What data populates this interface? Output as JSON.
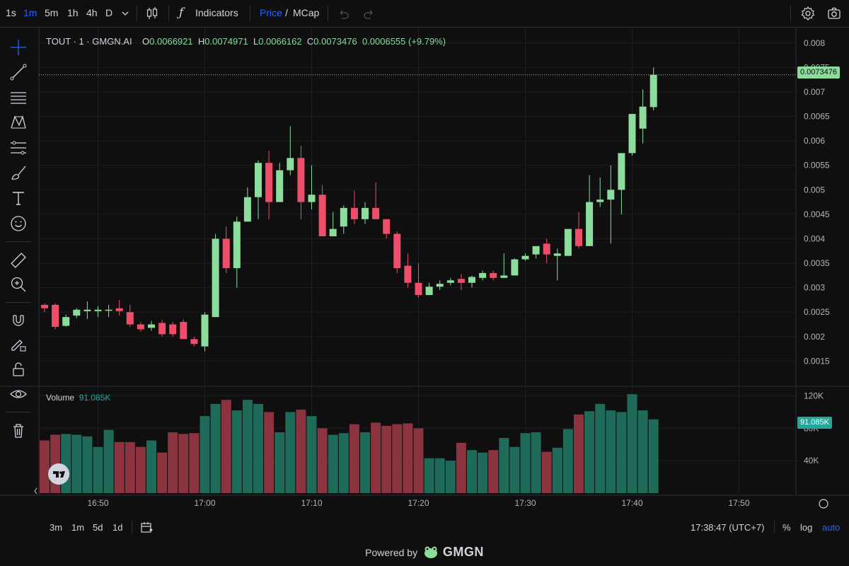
{
  "toolbar": {
    "timeframes": [
      "1s",
      "1m",
      "5m",
      "1h",
      "4h",
      "D"
    ],
    "active_timeframe": "1m",
    "indicators_label": "Indicators",
    "price_label": "Price",
    "slash": "/",
    "mcap_label": "MCap"
  },
  "legend": {
    "symbol": "TOUT · 1 · GMGN.AI",
    "o_label": "O",
    "o_value": "0.0066921",
    "h_label": "H",
    "h_value": "0.0074971",
    "l_label": "L",
    "l_value": "0.0066162",
    "c_label": "C",
    "c_value": "0.0073476",
    "change": "0.0006555 (+9.79%)"
  },
  "volume_legend": {
    "label": "Volume",
    "value": "91.085K"
  },
  "last_price_tag": "0.0073476",
  "volume_tag": "91.085K",
  "bottom_bar": {
    "ranges": [
      "3m",
      "1m",
      "5d",
      "1d"
    ],
    "clock": "17:38:47 (UTC+7)",
    "percent": "%",
    "log": "log",
    "auto": "auto"
  },
  "powered_by": {
    "text": "Powered by",
    "brand": "GMGN"
  },
  "colors": {
    "up": "#8cdc9c",
    "down": "#ef4e6a",
    "vol_up": "#1e6b5a",
    "vol_down": "#8c3340",
    "accent": "#2962ff",
    "tag_green": "#26a69a"
  },
  "chart_data": {
    "type": "candlestick",
    "title": "TOUT · 1 · GMGN.AI",
    "x_tick_labels": [
      "16:50",
      "17:00",
      "17:10",
      "17:20",
      "17:30",
      "17:40",
      "17:50"
    ],
    "y_tick_labels": [
      "0.0015",
      "0.002",
      "0.0025",
      "0.003",
      "0.0035",
      "0.004",
      "0.0045",
      "0.005",
      "0.0055",
      "0.006",
      "0.0065",
      "0.007",
      "0.0075",
      "0.008"
    ],
    "ylim": [
      0.001,
      0.0083
    ],
    "volume_tick_labels": [
      "40K",
      "80K",
      "120K"
    ],
    "volume_ylim": [
      0,
      130
    ],
    "candles": [
      {
        "t": "16:45",
        "o": 0.00265,
        "h": 0.00268,
        "l": 0.0025,
        "c": 0.00258,
        "v": 65
      },
      {
        "t": "16:46",
        "o": 0.00265,
        "h": 0.00268,
        "l": 0.00215,
        "c": 0.0022,
        "v": 72
      },
      {
        "t": "16:47",
        "o": 0.00222,
        "h": 0.00245,
        "l": 0.0022,
        "c": 0.0024,
        "v": 73
      },
      {
        "t": "16:48",
        "o": 0.00243,
        "h": 0.00258,
        "l": 0.00238,
        "c": 0.00255,
        "v": 72
      },
      {
        "t": "16:49",
        "o": 0.00252,
        "h": 0.00272,
        "l": 0.00236,
        "c": 0.00255,
        "v": 70
      },
      {
        "t": "16:50",
        "o": 0.00252,
        "h": 0.00262,
        "l": 0.0024,
        "c": 0.00255,
        "v": 57
      },
      {
        "t": "16:51",
        "o": 0.00254,
        "h": 0.00265,
        "l": 0.0024,
        "c": 0.00255,
        "v": 78
      },
      {
        "t": "16:52",
        "o": 0.00258,
        "h": 0.00275,
        "l": 0.00243,
        "c": 0.00252,
        "v": 63
      },
      {
        "t": "16:53",
        "o": 0.0025,
        "h": 0.00265,
        "l": 0.0022,
        "c": 0.00225,
        "v": 63
      },
      {
        "t": "16:54",
        "o": 0.00225,
        "h": 0.0023,
        "l": 0.0021,
        "c": 0.00215,
        "v": 57
      },
      {
        "t": "16:55",
        "o": 0.00218,
        "h": 0.00232,
        "l": 0.00212,
        "c": 0.00225,
        "v": 65
      },
      {
        "t": "16:56",
        "o": 0.00228,
        "h": 0.00235,
        "l": 0.002,
        "c": 0.00205,
        "v": 50
      },
      {
        "t": "16:57",
        "o": 0.00225,
        "h": 0.0023,
        "l": 0.002,
        "c": 0.00205,
        "v": 75
      },
      {
        "t": "16:58",
        "o": 0.0023,
        "h": 0.00235,
        "l": 0.00195,
        "c": 0.00195,
        "v": 73
      },
      {
        "t": "16:59",
        "o": 0.00195,
        "h": 0.002,
        "l": 0.0018,
        "c": 0.00185,
        "v": 74
      },
      {
        "t": "17:00",
        "o": 0.0018,
        "h": 0.0025,
        "l": 0.0017,
        "c": 0.00245,
        "v": 95
      },
      {
        "t": "17:01",
        "o": 0.0024,
        "h": 0.0041,
        "l": 0.0024,
        "c": 0.004,
        "v": 110
      },
      {
        "t": "17:02",
        "o": 0.004,
        "h": 0.00425,
        "l": 0.0033,
        "c": 0.0034,
        "v": 115
      },
      {
        "t": "17:03",
        "o": 0.0034,
        "h": 0.00445,
        "l": 0.003,
        "c": 0.00435,
        "v": 102
      },
      {
        "t": "17:04",
        "o": 0.00435,
        "h": 0.00505,
        "l": 0.00435,
        "c": 0.00485,
        "v": 115
      },
      {
        "t": "17:05",
        "o": 0.00485,
        "h": 0.0056,
        "l": 0.0044,
        "c": 0.00555,
        "v": 110
      },
      {
        "t": "17:06",
        "o": 0.00555,
        "h": 0.0058,
        "l": 0.0044,
        "c": 0.00475,
        "v": 100
      },
      {
        "t": "17:07",
        "o": 0.00475,
        "h": 0.00555,
        "l": 0.00475,
        "c": 0.0054,
        "v": 75
      },
      {
        "t": "17:08",
        "o": 0.0054,
        "h": 0.0063,
        "l": 0.0053,
        "c": 0.00565,
        "v": 100
      },
      {
        "t": "17:09",
        "o": 0.00565,
        "h": 0.0059,
        "l": 0.0044,
        "c": 0.00475,
        "v": 103
      },
      {
        "t": "17:10",
        "o": 0.00475,
        "h": 0.0055,
        "l": 0.0046,
        "c": 0.0049,
        "v": 95
      },
      {
        "t": "17:11",
        "o": 0.0049,
        "h": 0.0051,
        "l": 0.00405,
        "c": 0.00405,
        "v": 80
      },
      {
        "t": "17:12",
        "o": 0.00405,
        "h": 0.00455,
        "l": 0.00405,
        "c": 0.0042,
        "v": 72
      },
      {
        "t": "17:13",
        "o": 0.00425,
        "h": 0.00468,
        "l": 0.0041,
        "c": 0.00463,
        "v": 74
      },
      {
        "t": "17:14",
        "o": 0.00463,
        "h": 0.00498,
        "l": 0.0043,
        "c": 0.0044,
        "v": 85
      },
      {
        "t": "17:15",
        "o": 0.0044,
        "h": 0.00475,
        "l": 0.0043,
        "c": 0.00463,
        "v": 75
      },
      {
        "t": "17:16",
        "o": 0.00463,
        "h": 0.00515,
        "l": 0.0044,
        "c": 0.0044,
        "v": 87
      },
      {
        "t": "17:17",
        "o": 0.0044,
        "h": 0.0044,
        "l": 0.004,
        "c": 0.0041,
        "v": 83
      },
      {
        "t": "17:18",
        "o": 0.0041,
        "h": 0.00415,
        "l": 0.0033,
        "c": 0.0034,
        "v": 85
      },
      {
        "t": "17:19",
        "o": 0.00345,
        "h": 0.0037,
        "l": 0.003,
        "c": 0.0031,
        "v": 86
      },
      {
        "t": "17:20",
        "o": 0.0031,
        "h": 0.0035,
        "l": 0.0028,
        "c": 0.00285,
        "v": 80
      },
      {
        "t": "17:21",
        "o": 0.00285,
        "h": 0.0031,
        "l": 0.00285,
        "c": 0.00302,
        "v": 43
      },
      {
        "t": "17:22",
        "o": 0.00302,
        "h": 0.00315,
        "l": 0.00295,
        "c": 0.00308,
        "v": 43
      },
      {
        "t": "17:23",
        "o": 0.0031,
        "h": 0.0032,
        "l": 0.00305,
        "c": 0.00315,
        "v": 40
      },
      {
        "t": "17:24",
        "o": 0.00318,
        "h": 0.00328,
        "l": 0.00295,
        "c": 0.0031,
        "v": 62
      },
      {
        "t": "17:25",
        "o": 0.0031,
        "h": 0.00325,
        "l": 0.003,
        "c": 0.00322,
        "v": 53
      },
      {
        "t": "17:26",
        "o": 0.0032,
        "h": 0.00335,
        "l": 0.00315,
        "c": 0.0033,
        "v": 50
      },
      {
        "t": "17:27",
        "o": 0.0033,
        "h": 0.00335,
        "l": 0.00315,
        "c": 0.0032,
        "v": 53
      },
      {
        "t": "17:28",
        "o": 0.0032,
        "h": 0.0037,
        "l": 0.0032,
        "c": 0.00325,
        "v": 68
      },
      {
        "t": "17:29",
        "o": 0.00325,
        "h": 0.0036,
        "l": 0.00325,
        "c": 0.00358,
        "v": 57
      },
      {
        "t": "17:30",
        "o": 0.00358,
        "h": 0.0037,
        "l": 0.00355,
        "c": 0.00365,
        "v": 74
      },
      {
        "t": "17:31",
        "o": 0.00368,
        "h": 0.00385,
        "l": 0.0036,
        "c": 0.00385,
        "v": 75
      },
      {
        "t": "17:32",
        "o": 0.0039,
        "h": 0.004,
        "l": 0.0035,
        "c": 0.00368,
        "v": 51
      },
      {
        "t": "17:33",
        "o": 0.00365,
        "h": 0.0038,
        "l": 0.00315,
        "c": 0.0037,
        "v": 56
      },
      {
        "t": "17:34",
        "o": 0.00365,
        "h": 0.0042,
        "l": 0.00365,
        "c": 0.0042,
        "v": 79
      },
      {
        "t": "17:35",
        "o": 0.0042,
        "h": 0.00455,
        "l": 0.0038,
        "c": 0.00385,
        "v": 97
      },
      {
        "t": "17:36",
        "o": 0.00385,
        "h": 0.0053,
        "l": 0.00385,
        "c": 0.00475,
        "v": 101
      },
      {
        "t": "17:37",
        "o": 0.00475,
        "h": 0.00525,
        "l": 0.00465,
        "c": 0.0048,
        "v": 110
      },
      {
        "t": "17:38",
        "o": 0.0048,
        "h": 0.0055,
        "l": 0.0039,
        "c": 0.005,
        "v": 102
      },
      {
        "t": "17:39",
        "o": 0.005,
        "h": 0.0057,
        "l": 0.0045,
        "c": 0.00575,
        "v": 100
      },
      {
        "t": "17:40",
        "o": 0.00575,
        "h": 0.00655,
        "l": 0.0057,
        "c": 0.00655,
        "v": 122
      },
      {
        "t": "17:41",
        "o": 0.00625,
        "h": 0.00705,
        "l": 0.00595,
        "c": 0.0067,
        "v": 102
      },
      {
        "t": "17:42",
        "o": 0.00669,
        "h": 0.0075,
        "l": 0.00662,
        "c": 0.00735,
        "v": 91
      }
    ]
  }
}
